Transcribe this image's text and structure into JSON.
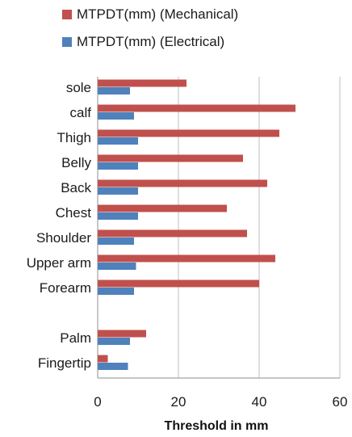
{
  "chart_data": {
    "type": "bar",
    "orientation": "horizontal",
    "categories": [
      "sole",
      "calf",
      "Thigh",
      "Belly",
      "Back",
      "Chest",
      "Shoulder",
      "Upper arm",
      "Forearm",
      "",
      "Palm",
      "Fingertip"
    ],
    "series": [
      {
        "name": "MTPDT(mm) (Mechanical)",
        "color": "#c0504d",
        "values": [
          22,
          49,
          45,
          36,
          42,
          32,
          37,
          44,
          40,
          null,
          12,
          2.5
        ]
      },
      {
        "name": "MTPDT(mm) (Electrical)",
        "color": "#4f81bd",
        "values": [
          8,
          9,
          10,
          10,
          10,
          10,
          9,
          9.5,
          9,
          null,
          8,
          7.5
        ]
      }
    ],
    "xlabel": "Threshold in mm",
    "xlim": [
      0,
      60
    ],
    "xticks": [
      0,
      20,
      40,
      60
    ],
    "grid": "vertical major gridlines",
    "legend_position": "top"
  }
}
